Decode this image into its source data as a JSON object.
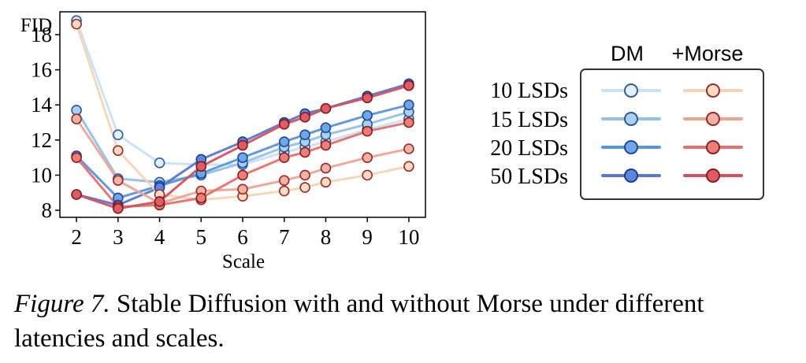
{
  "chart_data": {
    "type": "line",
    "ylabel": "FID",
    "xlabel": "Scale",
    "x": [
      2,
      3,
      4,
      5,
      6,
      7,
      7.5,
      8,
      9,
      10
    ],
    "xticks": [
      "2",
      "3",
      "4",
      "5",
      "6",
      "7",
      "8",
      "9",
      "10"
    ],
    "yticks": [
      "8",
      "10",
      "12",
      "14",
      "16",
      "18"
    ],
    "xlim": [
      1.6,
      10.4
    ],
    "ylim": [
      7.6,
      19.3
    ],
    "grid": false,
    "legend": {
      "position": "right",
      "column_headers": [
        "DM",
        "+Morse"
      ],
      "row_labels": [
        "10 LSDs",
        "15 LSDs",
        "20 LSDs",
        "50 LSDs"
      ]
    },
    "series": [
      {
        "name": "10 LSDs",
        "group": "DM",
        "color": "#c9e2f6",
        "edge": "#2f5d9a",
        "fill": "#e2f0fb",
        "values": [
          18.8,
          12.3,
          10.7,
          10.6,
          10.6,
          11.3,
          11.6,
          11.9,
          12.6,
          13.2
        ]
      },
      {
        "name": "15 LSDs",
        "group": "DM",
        "color": "#94c1e8",
        "edge": "#2a589a",
        "fill": "#a9d0f0",
        "values": [
          13.7,
          9.8,
          9.6,
          10.0,
          10.7,
          11.6,
          11.9,
          12.3,
          12.9,
          13.6
        ]
      },
      {
        "name": "20 LSDs",
        "group": "DM",
        "color": "#5b93dc",
        "edge": "#21489c",
        "fill": "#6fa6e6",
        "values": [
          11.1,
          8.7,
          9.4,
          10.1,
          11.0,
          11.9,
          12.3,
          12.7,
          13.4,
          14.0
        ]
      },
      {
        "name": "50 LSDs",
        "group": "DM",
        "color": "#5d76cc",
        "edge": "#1d3a8f",
        "fill": "#5e86dc",
        "values": [
          8.9,
          8.3,
          9.3,
          10.9,
          11.9,
          13.0,
          13.5,
          13.8,
          14.5,
          15.2
        ]
      },
      {
        "name": "10 LSDs",
        "group": "+Morse",
        "color": "#f4d6b6",
        "edge": "#9a2b2b",
        "fill": "#f8dcc2",
        "values": [
          18.6,
          11.4,
          8.9,
          8.6,
          8.8,
          9.1,
          9.3,
          9.6,
          10.0,
          10.5
        ]
      },
      {
        "name": "15 LSDs",
        "group": "+Morse",
        "color": "#eda593",
        "edge": "#9a2727",
        "fill": "#f0b3a3",
        "values": [
          13.2,
          9.7,
          8.4,
          9.1,
          9.2,
          9.7,
          10.0,
          10.4,
          11.0,
          11.5
        ]
      },
      {
        "name": "20 LSDs",
        "group": "+Morse",
        "color": "#e5706d",
        "edge": "#8e1f1f",
        "fill": "#ea7e78",
        "values": [
          11.0,
          8.2,
          8.3,
          8.7,
          10.0,
          11.0,
          11.3,
          11.7,
          12.5,
          13.0
        ]
      },
      {
        "name": "50 LSDs",
        "group": "+Morse",
        "color": "#d4525e",
        "edge": "#8a1a22",
        "fill": "#dd5e62",
        "values": [
          8.9,
          8.1,
          8.5,
          10.5,
          11.7,
          12.9,
          13.3,
          13.8,
          14.4,
          15.1
        ]
      }
    ]
  },
  "caption": {
    "figure_label": "Figure 7.",
    "text": " Stable Diffusion with and without Morse under different latencies and scales."
  }
}
